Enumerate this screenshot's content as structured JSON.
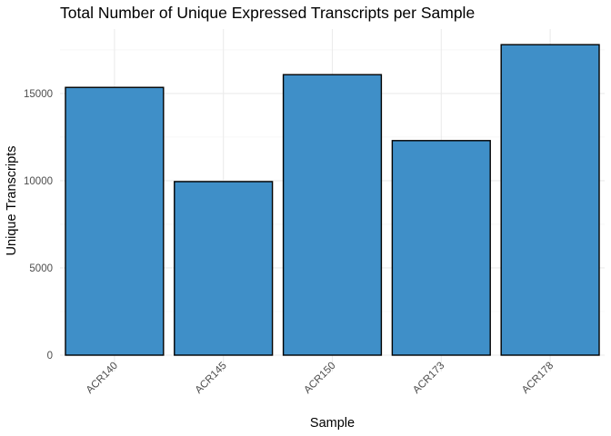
{
  "chart_data": {
    "type": "bar",
    "title": "Total Number of Unique Expressed Transcripts per Sample",
    "xlabel": "Sample",
    "ylabel": "Unique Transcripts",
    "categories": [
      "ACR140",
      "ACR145",
      "ACR150",
      "ACR173",
      "ACR178"
    ],
    "values": [
      15350,
      9950,
      16080,
      12300,
      17800
    ],
    "yticks": [
      0,
      5000,
      10000,
      15000
    ],
    "ytick_labels": [
      "0",
      "5000",
      "10000",
      "15000"
    ],
    "ylim": [
      0,
      18700
    ],
    "grid": true,
    "bar_color": "#3f8fc8",
    "bar_outline_color": "#000000",
    "legend": "none"
  }
}
